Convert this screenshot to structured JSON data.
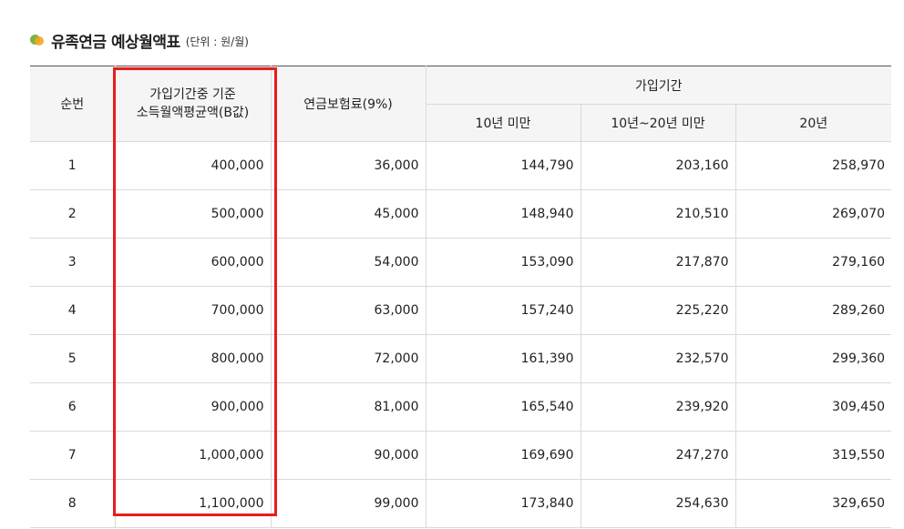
{
  "header": {
    "title": "유족연금 예상월액표",
    "unit": "(단위 : 원/월)"
  },
  "table": {
    "col_seq": "순번",
    "col_income_line1": "가입기간중 기준",
    "col_income_line2": "소득월액평균액(B값)",
    "col_premium": "연금보험료(9%)",
    "col_period_group": "가입기간",
    "col_under10": "10년 미만",
    "col_10to20": "10년~20년 미만",
    "col_20": "20년",
    "rows": [
      {
        "seq": "1",
        "income": "400,000",
        "premium": "36,000",
        "under10": "144,790",
        "mid": "203,160",
        "y20": "258,970"
      },
      {
        "seq": "2",
        "income": "500,000",
        "premium": "45,000",
        "under10": "148,940",
        "mid": "210,510",
        "y20": "269,070"
      },
      {
        "seq": "3",
        "income": "600,000",
        "premium": "54,000",
        "under10": "153,090",
        "mid": "217,870",
        "y20": "279,160"
      },
      {
        "seq": "4",
        "income": "700,000",
        "premium": "63,000",
        "under10": "157,240",
        "mid": "225,220",
        "y20": "289,260"
      },
      {
        "seq": "5",
        "income": "800,000",
        "premium": "72,000",
        "under10": "161,390",
        "mid": "232,570",
        "y20": "299,360"
      },
      {
        "seq": "6",
        "income": "900,000",
        "premium": "81,000",
        "under10": "165,540",
        "mid": "239,920",
        "y20": "309,450"
      },
      {
        "seq": "7",
        "income": "1,000,000",
        "premium": "90,000",
        "under10": "169,690",
        "mid": "247,270",
        "y20": "319,550"
      },
      {
        "seq": "8",
        "income": "1,100,000",
        "premium": "99,000",
        "under10": "173,840",
        "mid": "254,630",
        "y20": "329,650"
      }
    ]
  },
  "colors": {
    "highlight_border": "#e81c1c",
    "bullet_green": "#7cb342",
    "bullet_orange": "#f5a623"
  }
}
